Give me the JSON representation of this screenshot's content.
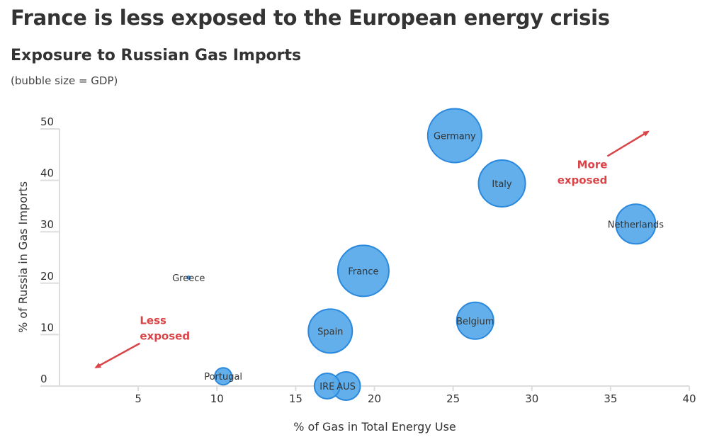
{
  "header": {
    "title": "France is less exposed to the European energy crisis",
    "subtitle": "Exposure to Russian Gas Imports",
    "note": "(bubble size = GDP)"
  },
  "colors": {
    "bubble_fill": "#5aabea",
    "bubble_stroke": "#2a88dd",
    "annotation": "#d94448",
    "axis": "#dddddd",
    "text": "#333333"
  },
  "chart_data": {
    "type": "scatter",
    "title": "Exposure to Russian Gas Imports",
    "subtitle": "(bubble size = GDP)",
    "xlabel": "% of Gas in Total Energy Use",
    "ylabel": "% of Russia in Gas Imports",
    "xlim": [
      0,
      40
    ],
    "ylim": [
      0,
      50
    ],
    "xticks": [
      5,
      10,
      15,
      20,
      25,
      30,
      35,
      40
    ],
    "yticks": [
      0,
      10,
      20,
      30,
      40,
      50
    ],
    "grid": false,
    "size_encoding": "GDP (relative bubble radius)",
    "points": [
      {
        "label": "Germany",
        "x": 25.1,
        "y": 48.7,
        "size": 38
      },
      {
        "label": "Italy",
        "x": 28.1,
        "y": 39.4,
        "size": 33
      },
      {
        "label": "Netherlands",
        "x": 36.6,
        "y": 31.5,
        "size": 28
      },
      {
        "label": "France",
        "x": 19.3,
        "y": 22.4,
        "size": 36
      },
      {
        "label": "Greece",
        "x": 8.2,
        "y": 21.1,
        "size": 2
      },
      {
        "label": "Belgium",
        "x": 26.4,
        "y": 12.7,
        "size": 26
      },
      {
        "label": "Spain",
        "x": 17.2,
        "y": 10.7,
        "size": 31
      },
      {
        "label": "Portugal",
        "x": 10.4,
        "y": 1.9,
        "size": 12
      },
      {
        "label": "IRE",
        "x": 17.0,
        "y": 0.0,
        "size": 18
      },
      {
        "label": "AUS",
        "x": 18.2,
        "y": 0.0,
        "size": 20
      }
    ],
    "annotations": [
      {
        "text_lines": [
          "More",
          "exposed"
        ],
        "direction": "up-right",
        "arrow_from": [
          34.8,
          44.7
        ],
        "arrow_to": [
          37.4,
          49.5
        ]
      },
      {
        "text_lines": [
          "Less",
          "exposed"
        ],
        "direction": "down-left",
        "arrow_from": [
          5.1,
          8.3
        ],
        "arrow_to": [
          2.3,
          3.6
        ]
      }
    ]
  }
}
